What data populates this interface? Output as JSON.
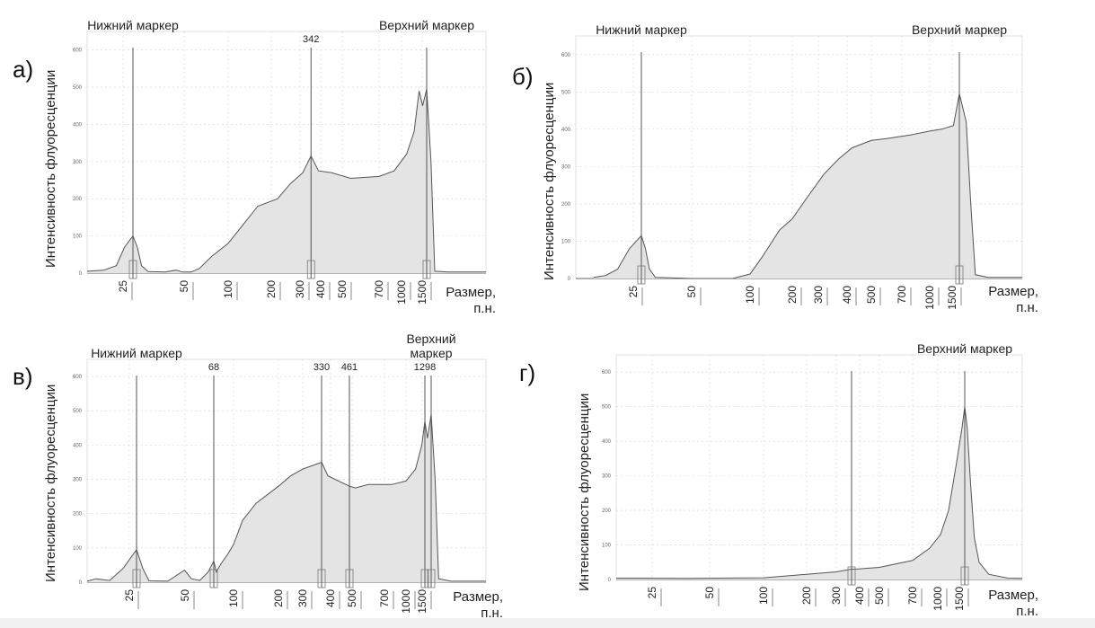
{
  "colors": {
    "fill": "#e4e4e4",
    "line": "#555555",
    "axis": "#666666",
    "grid": "#d2d2d2"
  },
  "x_unit_label": "Размер,\nп.н.",
  "y_axis_label": "Интенсивность флуоресценции",
  "chart_data": [
    {
      "panel": "а)",
      "type": "area",
      "ylabel": "Интенсивность флуоресценции",
      "xlabel": "Размер, п.н.",
      "y_ticks": [
        "0",
        "100",
        "200",
        "300",
        "400",
        "500",
        "600"
      ],
      "ylim": [
        0,
        650
      ],
      "x_ticks": [
        "25",
        "50",
        "100",
        "200",
        "300",
        "400",
        "500",
        "700",
        "1000",
        "1500"
      ],
      "marker_labels": [
        {
          "text": "Нижний маркер",
          "at": "25"
        },
        {
          "text": "Верхний маркер",
          "at": "1500"
        }
      ],
      "peak_labels": [
        {
          "text": "342",
          "at": 342
        }
      ],
      "vertical_lines": [
        25,
        342,
        1500
      ],
      "series": [
        {
          "values": [
            [
              14,
              5
            ],
            [
              18,
              8
            ],
            [
              21,
              20
            ],
            [
              23,
              70
            ],
            [
              25,
              100
            ],
            [
              27,
              70
            ],
            [
              29,
              20
            ],
            [
              32,
              4
            ],
            [
              40,
              3
            ],
            [
              45,
              8
            ],
            [
              48,
              3
            ],
            [
              55,
              3
            ],
            [
              65,
              12
            ],
            [
              80,
              45
            ],
            [
              100,
              80
            ],
            [
              130,
              130
            ],
            [
              160,
              180
            ],
            [
              200,
              200
            ],
            [
              250,
              240
            ],
            [
              300,
              270
            ],
            [
              342,
              315
            ],
            [
              380,
              275
            ],
            [
              450,
              270
            ],
            [
              550,
              255
            ],
            [
              700,
              260
            ],
            [
              900,
              275
            ],
            [
              1100,
              320
            ],
            [
              1250,
              380
            ],
            [
              1350,
              490
            ],
            [
              1420,
              450
            ],
            [
              1500,
              495
            ],
            [
              1580,
              300
            ],
            [
              1650,
              5
            ],
            [
              1900,
              3
            ],
            [
              2600,
              3
            ]
          ]
        }
      ]
    },
    {
      "panel": "б)",
      "type": "area",
      "ylabel": "Интенсивность флуоресценции",
      "xlabel": "Размер, п.н.",
      "y_ticks": [
        "0",
        "100",
        "200",
        "300",
        "400",
        "500",
        "600"
      ],
      "ylim": [
        0,
        650
      ],
      "x_ticks": [
        "25",
        "50",
        "100",
        "200",
        "300",
        "400",
        "500",
        "700",
        "1000",
        "1500"
      ],
      "marker_labels": [
        {
          "text": "Нижний маркер",
          "at": "25"
        },
        {
          "text": "Верхний маркер",
          "at": "1500"
        }
      ],
      "peak_labels": [],
      "vertical_lines": [
        25,
        1500
      ],
      "series": [
        {
          "values": [
            [
              17,
              3
            ],
            [
              19,
              8
            ],
            [
              21,
              25
            ],
            [
              23,
              80
            ],
            [
              25,
              115
            ],
            [
              27,
              80
            ],
            [
              29,
              25
            ],
            [
              32,
              3
            ],
            [
              50,
              0
            ],
            [
              85,
              0
            ],
            [
              100,
              12
            ],
            [
              130,
              60
            ],
            [
              170,
              130
            ],
            [
              200,
              160
            ],
            [
              260,
              220
            ],
            [
              320,
              280
            ],
            [
              370,
              320
            ],
            [
              420,
              350
            ],
            [
              500,
              370
            ],
            [
              600,
              375
            ],
            [
              800,
              385
            ],
            [
              1000,
              395
            ],
            [
              1200,
              400
            ],
            [
              1400,
              410
            ],
            [
              1500,
              495
            ],
            [
              1620,
              420
            ],
            [
              1700,
              200
            ],
            [
              1780,
              10
            ],
            [
              2000,
              3
            ],
            [
              2600,
              3
            ]
          ]
        }
      ]
    },
    {
      "panel": "в)",
      "type": "area",
      "ylabel": "Интенсивность флуоресценции",
      "xlabel": "Размер, п.н.",
      "y_ticks": [
        "0",
        "100",
        "200",
        "300",
        "400",
        "500",
        "600"
      ],
      "ylim": [
        0,
        650
      ],
      "x_ticks": [
        "25",
        "50",
        "100",
        "200",
        "300",
        "400",
        "500",
        "700",
        "1000",
        "1500"
      ],
      "marker_labels": [
        {
          "text": "Нижний маркер",
          "at": "25"
        },
        {
          "text": "Верхний\nмаркер",
          "at": "1500"
        }
      ],
      "peak_labels": [
        {
          "text": "68",
          "at": 68
        },
        {
          "text": "330",
          "at": 330
        },
        {
          "text": "461",
          "at": 461
        },
        {
          "text": "1298",
          "at": 1298
        }
      ],
      "vertical_lines": [
        25,
        68,
        330,
        461,
        1298,
        1500
      ],
      "series": [
        {
          "values": [
            [
              14,
              3
            ],
            [
              16,
              10
            ],
            [
              19,
              5
            ],
            [
              22,
              40
            ],
            [
              25,
              95
            ],
            [
              28,
              40
            ],
            [
              31,
              4
            ],
            [
              40,
              3
            ],
            [
              48,
              35
            ],
            [
              52,
              10
            ],
            [
              58,
              5
            ],
            [
              64,
              30
            ],
            [
              68,
              62
            ],
            [
              72,
              30
            ],
            [
              80,
              55
            ],
            [
              90,
              80
            ],
            [
              100,
              110
            ],
            [
              120,
              180
            ],
            [
              150,
              230
            ],
            [
              200,
              280
            ],
            [
              250,
              310
            ],
            [
              300,
              330
            ],
            [
              330,
              350
            ],
            [
              380,
              310
            ],
            [
              461,
              280
            ],
            [
              520,
              275
            ],
            [
              600,
              285
            ],
            [
              800,
              285
            ],
            [
              1000,
              295
            ],
            [
              1150,
              330
            ],
            [
              1250,
              400
            ],
            [
              1298,
              470
            ],
            [
              1380,
              420
            ],
            [
              1450,
              460
            ],
            [
              1500,
              490
            ],
            [
              1580,
              300
            ],
            [
              1650,
              10
            ],
            [
              1900,
              3
            ],
            [
              2600,
              3
            ]
          ]
        }
      ]
    },
    {
      "panel": "г)",
      "type": "area",
      "ylabel": "Интенсивность флуоресценции",
      "xlabel": "Размер, п.н.",
      "y_ticks": [
        "0",
        "100",
        "200",
        "300",
        "400",
        "500",
        "600"
      ],
      "ylim": [
        0,
        650
      ],
      "x_ticks": [
        "25",
        "50",
        "100",
        "200",
        "300",
        "400",
        "500",
        "700",
        "1000",
        "1500"
      ],
      "marker_labels": [
        {
          "text": "Верхний маркер",
          "at": "1500"
        }
      ],
      "peak_labels": [],
      "vertical_lines": [
        360,
        1500
      ],
      "series": [
        {
          "values": [
            [
              12,
              4
            ],
            [
              20,
              4
            ],
            [
              40,
              3
            ],
            [
              100,
              5
            ],
            [
              200,
              15
            ],
            [
              300,
              22
            ],
            [
              360,
              30
            ],
            [
              380,
              30
            ],
            [
              500,
              35
            ],
            [
              700,
              55
            ],
            [
              900,
              90
            ],
            [
              1050,
              130
            ],
            [
              1200,
              200
            ],
            [
              1350,
              340
            ],
            [
              1450,
              440
            ],
            [
              1500,
              500
            ],
            [
              1550,
              440
            ],
            [
              1620,
              280
            ],
            [
              1700,
              120
            ],
            [
              1800,
              50
            ],
            [
              2000,
              15
            ],
            [
              2400,
              4
            ],
            [
              2700,
              3
            ]
          ]
        }
      ]
    }
  ]
}
